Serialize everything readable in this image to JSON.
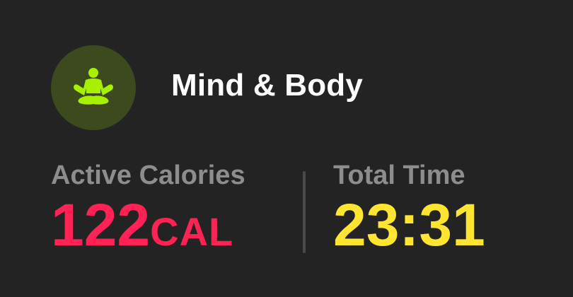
{
  "workout": {
    "title": "Mind & Body",
    "icon": "meditation-figure-icon",
    "icon_color": "#a6f000",
    "icon_bg": "#3c4a1d"
  },
  "metrics": {
    "calories": {
      "label": "Active Calories",
      "value": "122",
      "unit": "CAL",
      "color": "#ff2254"
    },
    "time": {
      "label": "Total Time",
      "value": "23:31",
      "color": "#ffe52f"
    }
  }
}
